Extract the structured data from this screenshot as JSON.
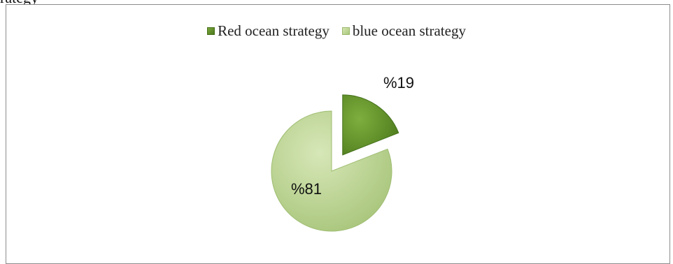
{
  "header_fragment": "rategy",
  "colors": {
    "red_ocean": "#5e8b27",
    "blue_ocean": "#bcd495"
  },
  "chart_data": {
    "type": "pie",
    "title": "",
    "legend_position": "top",
    "slices": [
      {
        "name": "Red ocean strategy",
        "value": 19,
        "label": "%19",
        "color": "#5e8b27",
        "exploded": true
      },
      {
        "name": "blue ocean strategy",
        "value": 81,
        "label": "%81",
        "color": "#bcd495",
        "exploded": false
      }
    ]
  }
}
